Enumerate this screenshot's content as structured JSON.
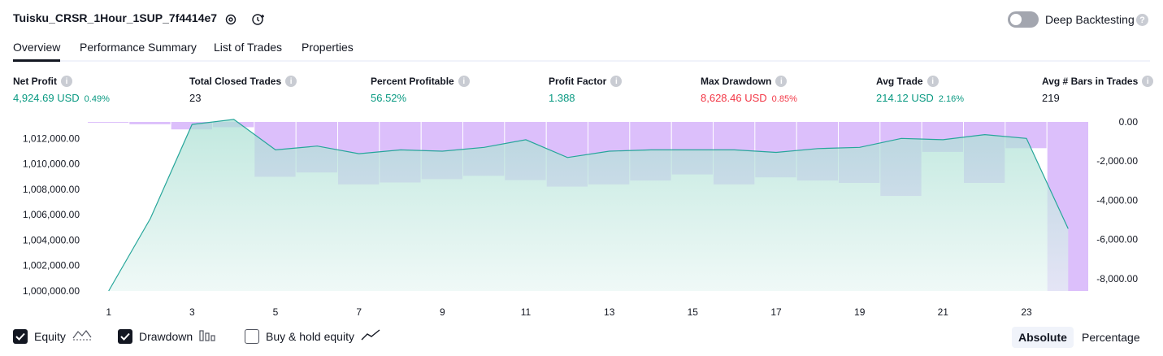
{
  "header": {
    "strategy_name": "Tuisku_CRSR_1Hour_1SUP_7f4414e7",
    "deep_backtesting_label": "Deep Backtesting",
    "deep_backtesting_enabled": false
  },
  "tabs": [
    {
      "label": "Overview",
      "active": true
    },
    {
      "label": "Performance Summary",
      "active": false
    },
    {
      "label": "List of Trades",
      "active": false
    },
    {
      "label": "Properties",
      "active": false
    }
  ],
  "metrics": [
    {
      "label": "Net Profit",
      "value": "4,924.69 USD",
      "pct": "0.49%",
      "color": "green"
    },
    {
      "label": "Total Closed Trades",
      "value": "23",
      "pct": "",
      "color": "dark"
    },
    {
      "label": "Percent Profitable",
      "value": "56.52%",
      "pct": "",
      "color": "green"
    },
    {
      "label": "Profit Factor",
      "value": "1.388",
      "pct": "",
      "color": "green"
    },
    {
      "label": "Max Drawdown",
      "value": "8,628.46 USD",
      "pct": "0.85%",
      "color": "red"
    },
    {
      "label": "Avg Trade",
      "value": "214.12 USD",
      "pct": "2.16%",
      "color": "green"
    },
    {
      "label": "Avg # Bars in Trades",
      "value": "219",
      "pct": "",
      "color": "dark"
    }
  ],
  "chart_data": {
    "type": "area",
    "left_axis": {
      "ticks": [
        "1,012,000.00",
        "1,010,000.00",
        "1,008,000.00",
        "1,006,000.00",
        "1,004,000.00",
        "1,002,000.00",
        "1,000,000.00"
      ],
      "tick_values": [
        1012000,
        1010000,
        1008000,
        1006000,
        1004000,
        1002000,
        1000000
      ],
      "range": [
        1000000,
        1013300
      ]
    },
    "right_axis": {
      "ticks": [
        "0.00",
        "-2,000.00",
        "-4,000.00",
        "-6,000.00",
        "-8,000.00"
      ],
      "tick_values": [
        0,
        -2000,
        -4000,
        -6000,
        -8000
      ],
      "range": [
        -8628,
        0
      ]
    },
    "x_ticks": [
      "1",
      "3",
      "5",
      "7",
      "9",
      "11",
      "13",
      "15",
      "17",
      "19",
      "21",
      "23"
    ],
    "x_tick_values": [
      1,
      3,
      5,
      7,
      9,
      11,
      13,
      15,
      17,
      19,
      21,
      23
    ],
    "equity": {
      "x": [
        1,
        2,
        3,
        4,
        5,
        6,
        7,
        8,
        9,
        10,
        11,
        12,
        13,
        14,
        15,
        16,
        17,
        18,
        19,
        20,
        21,
        22,
        23,
        24
      ],
      "values": [
        1000000,
        1005700,
        1013100,
        1013500,
        1011100,
        1011400,
        1010800,
        1011100,
        1011000,
        1011300,
        1011900,
        1010500,
        1011000,
        1011100,
        1011100,
        1011100,
        1010900,
        1011200,
        1011300,
        1012000,
        1011900,
        1012300,
        1012000,
        1004900
      ]
    },
    "drawdown": {
      "x": [
        1,
        2,
        3,
        4,
        5,
        6,
        7,
        8,
        9,
        10,
        11,
        12,
        13,
        14,
        15,
        16,
        17,
        18,
        19,
        20,
        21,
        22,
        23,
        24
      ],
      "values": [
        -30,
        -120,
        -380,
        -270,
        -2800,
        -2580,
        -3190,
        -3090,
        -2920,
        -2750,
        -2970,
        -3300,
        -3190,
        -2990,
        -2680,
        -3190,
        -2830,
        -2990,
        -3110,
        -3780,
        -1530,
        -3110,
        -1340,
        -8628
      ]
    },
    "colors": {
      "equity_line": "#26a69a",
      "equity_fill": "#b9e6dc",
      "drawdown": "#dabcfb"
    }
  },
  "legend": {
    "equity_label": "Equity",
    "equity_checked": true,
    "drawdown_label": "Drawdown",
    "drawdown_checked": true,
    "buyhold_label": "Buy & hold equity",
    "buyhold_checked": false
  },
  "view_toggle": {
    "absolute_label": "Absolute",
    "percentage_label": "Percentage",
    "selected": "Absolute"
  }
}
